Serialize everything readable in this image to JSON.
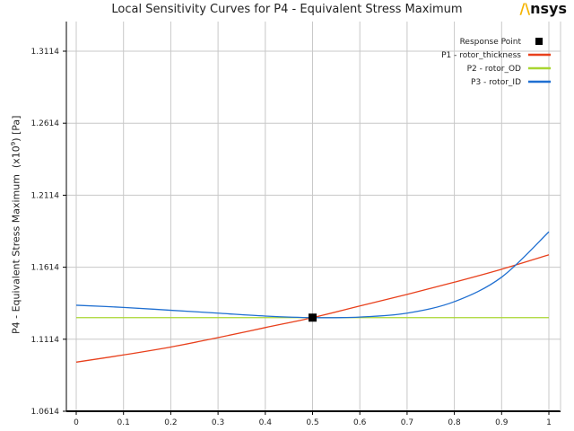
{
  "brand": {
    "name": "nsys",
    "mark": "/\\"
  },
  "chart_data": {
    "type": "line",
    "title": "Local Sensitivity Curves for P4 - Equivalent Stress Maximum",
    "ylabel_main": "P4 - Equivalent Stress Maximum",
    "ylabel_exp": "(x10",
    "ylabel_sup": "9",
    "ylabel_tail": ")  [Pa]",
    "xlim": [
      0,
      1
    ],
    "ylim": [
      1.0614,
      1.3114
    ],
    "x_ticks": [
      "0",
      "0.1",
      "0.2",
      "0.3",
      "0.4",
      "0.5",
      "0.6",
      "0.7",
      "0.8",
      "0.9",
      "1"
    ],
    "y_ticks": [
      "1.0614",
      "1.1114",
      "1.1614",
      "1.2114",
      "1.2614",
      "1.3114"
    ],
    "y_tick_values": [
      1.0614,
      1.1114,
      1.1614,
      1.2114,
      1.2614,
      1.3114
    ],
    "grid": true,
    "legend_position": "top-right",
    "response_point": {
      "label": "Response Point",
      "x": 0.5,
      "y": 1.1264
    },
    "x": [
      0,
      0.1,
      0.2,
      0.3,
      0.4,
      0.5,
      0.6,
      0.7,
      0.8,
      0.9,
      1
    ],
    "series": [
      {
        "name": "P1 - rotor_thickness",
        "color": "#e8401c",
        "values": [
          1.0955,
          1.1005,
          1.106,
          1.1125,
          1.1195,
          1.1264,
          1.1345,
          1.1425,
          1.151,
          1.16,
          1.17
        ]
      },
      {
        "name": "P2 - rotor_OD",
        "color": "#a8d631",
        "values": [
          1.1264,
          1.1264,
          1.1264,
          1.1264,
          1.1264,
          1.1264,
          1.1264,
          1.1264,
          1.1264,
          1.1264,
          1.1264
        ]
      },
      {
        "name": "P3 - rotor_ID",
        "color": "#1f6fd1",
        "values": [
          1.135,
          1.1335,
          1.1315,
          1.1295,
          1.1275,
          1.1264,
          1.1268,
          1.1295,
          1.1375,
          1.1545,
          1.186
        ]
      }
    ]
  }
}
